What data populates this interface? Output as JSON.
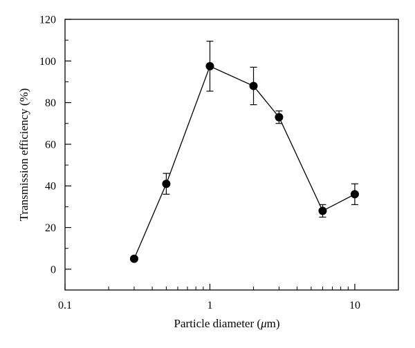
{
  "chart_data": {
    "type": "line",
    "xscale": "log",
    "xlim": [
      0.1,
      20
    ],
    "ylim": [
      -10,
      120
    ],
    "xticks": [
      {
        "value": 0.1,
        "label": "0.1"
      },
      {
        "value": 1,
        "label": "1"
      },
      {
        "value": 10,
        "label": "10"
      }
    ],
    "yticks": [
      {
        "value": 0,
        "label": "0"
      },
      {
        "value": 20,
        "label": "20"
      },
      {
        "value": 40,
        "label": "40"
      },
      {
        "value": 60,
        "label": "60"
      },
      {
        "value": 80,
        "label": "80"
      },
      {
        "value": 100,
        "label": "100"
      },
      {
        "value": 120,
        "label": "120"
      }
    ],
    "xlabel_prefix": "Particle diameter (",
    "xlabel_unit": "μ",
    "xlabel_suffix": "m)",
    "ylabel": "Transmission efficiency (%)",
    "grid": false,
    "series": [
      {
        "marker": "filled-circle",
        "color": "#000000",
        "points": [
          {
            "x": 0.3,
            "y": 5,
            "err_low": 4,
            "err_high": 6
          },
          {
            "x": 0.5,
            "y": 41,
            "err_low": 36,
            "err_high": 46
          },
          {
            "x": 1.0,
            "y": 97.5,
            "err_low": 85.5,
            "err_high": 109.5
          },
          {
            "x": 2.0,
            "y": 88,
            "err_low": 79,
            "err_high": 97
          },
          {
            "x": 3.0,
            "y": 73,
            "err_low": 70,
            "err_high": 76
          },
          {
            "x": 6.0,
            "y": 28,
            "err_low": 25,
            "err_high": 31
          },
          {
            "x": 10.0,
            "y": 36,
            "err_low": 31,
            "err_high": 41
          }
        ]
      }
    ]
  }
}
